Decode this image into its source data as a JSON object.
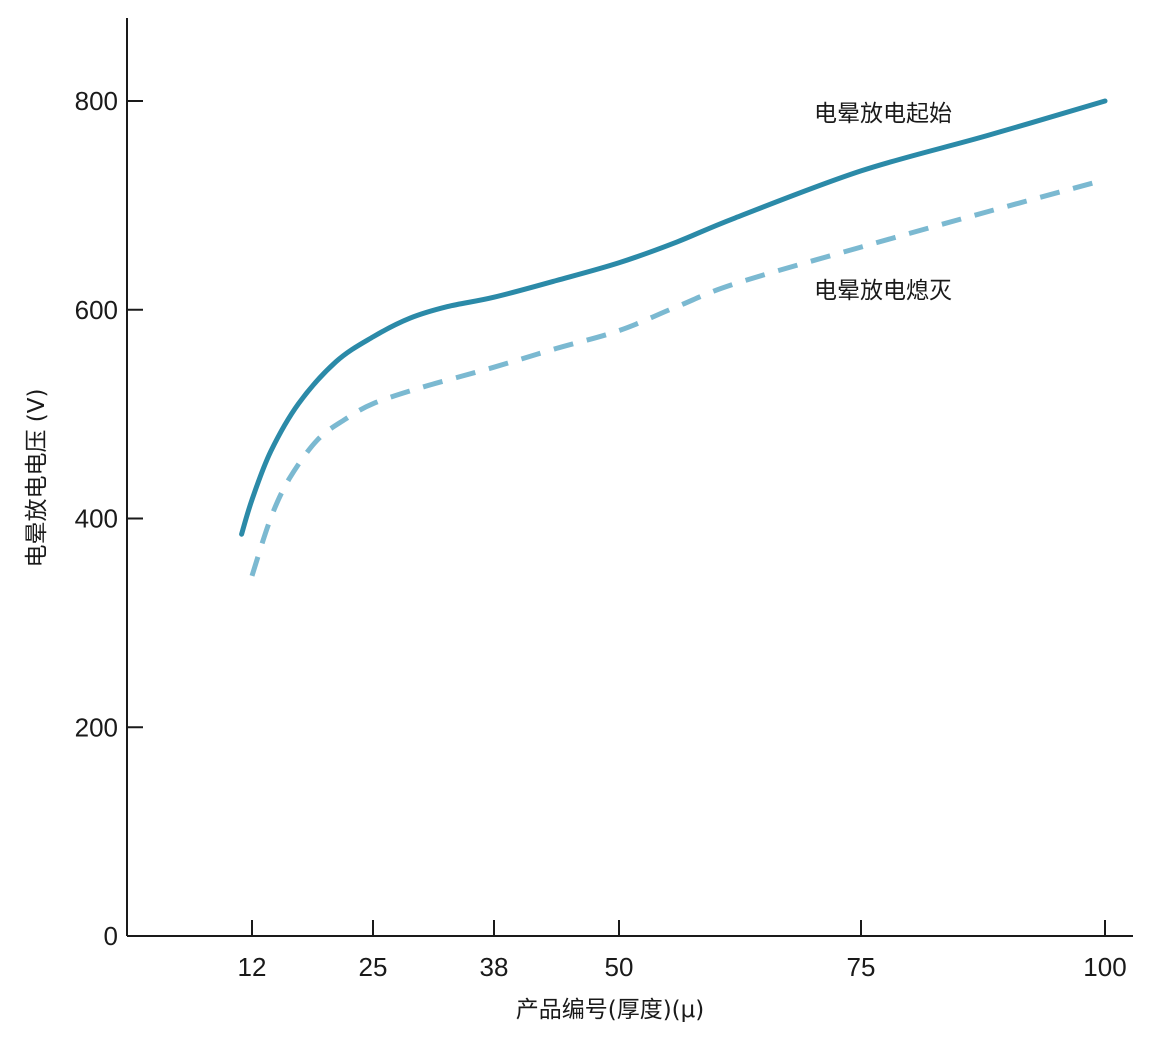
{
  "chart_data": {
    "type": "line",
    "xlabel": "产品编号(厚度)(μ)",
    "ylabel": "电晕放电电压 (V)",
    "x_ticks": [
      12,
      25,
      38,
      50,
      75,
      100
    ],
    "y_ticks": [
      0,
      200,
      400,
      600,
      800
    ],
    "ylim": [
      0,
      880
    ],
    "grid": false,
    "series": [
      {
        "name": "电晕放电起始",
        "style": "solid",
        "color": "#2b8aa8",
        "points": [
          [
            11,
            385
          ],
          [
            12,
            418
          ],
          [
            14,
            464
          ],
          [
            17,
            510
          ],
          [
            21,
            550
          ],
          [
            25,
            574
          ],
          [
            29,
            592
          ],
          [
            33,
            603
          ],
          [
            38,
            612
          ],
          [
            44,
            628
          ],
          [
            50,
            645
          ],
          [
            56,
            665
          ],
          [
            62,
            688
          ],
          [
            75,
            733
          ],
          [
            88,
            767
          ],
          [
            100,
            800
          ]
        ]
      },
      {
        "name": "电晕放电熄灭",
        "style": "dashed",
        "color": "#7bb9d1",
        "points": [
          [
            12,
            345
          ],
          [
            14,
            400
          ],
          [
            16,
            438
          ],
          [
            19,
            475
          ],
          [
            22,
            495
          ],
          [
            25,
            510
          ],
          [
            30,
            525
          ],
          [
            38,
            545
          ],
          [
            44,
            563
          ],
          [
            50,
            580
          ],
          [
            56,
            603
          ],
          [
            62,
            625
          ],
          [
            75,
            660
          ],
          [
            88,
            694
          ],
          [
            99,
            722
          ]
        ]
      }
    ]
  }
}
